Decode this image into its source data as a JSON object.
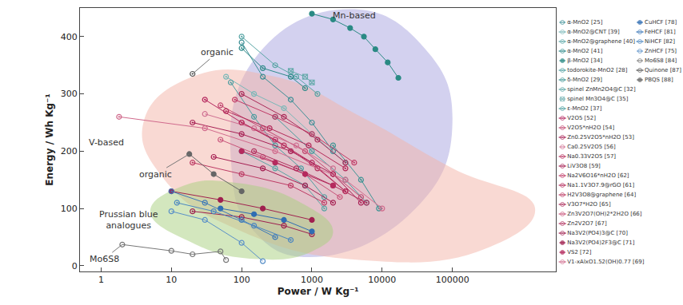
{
  "chart_data": {
    "type": "scatter",
    "x_label": "Power / W Kg⁻¹",
    "y_label": "Energy / Wh Kg⁻¹",
    "log": "x",
    "xlim": [
      0.5,
      3000000
    ],
    "ylim": [
      -10,
      450
    ],
    "xticks": [
      1,
      10,
      100,
      1000,
      10000,
      100000
    ],
    "yticks": [
      0,
      100,
      200,
      300,
      400
    ],
    "grid": false,
    "legend": "right",
    "series": [
      {
        "name": "α-MnO2 [25]",
        "color": "#3c8f96",
        "marker": "open",
        "x": [
          100,
          200,
          500,
          1000,
          2000
        ],
        "values": [
          390,
          330,
          290,
          250,
          200
        ]
      },
      {
        "name": "α-MnO2@CNT [39]",
        "color": "#7ab8b8",
        "marker": "half",
        "x": [
          60,
          150,
          400,
          1000,
          3000
        ],
        "values": [
          330,
          300,
          275,
          230,
          180
        ]
      },
      {
        "name": "α-MnO2@graphene [40]",
        "color": "#5aa6a6",
        "marker": "half",
        "x": [
          100,
          300,
          600,
          1200
        ],
        "values": [
          400,
          350,
          330,
          300
        ]
      },
      {
        "name": "α-MnO2 [41]",
        "color": "#2f8a8a",
        "marker": "half",
        "x": [
          100,
          200,
          500,
          800
        ],
        "values": [
          380,
          345,
          330,
          310
        ]
      },
      {
        "name": "β-MnO2 [34]",
        "color": "#2a8a84",
        "marker": "filled",
        "x": [
          1000,
          2000,
          3500,
          5500,
          8000,
          12000,
          17000
        ],
        "values": [
          440,
          430,
          415,
          400,
          378,
          355,
          328
        ]
      },
      {
        "name": "todorokite-MnO2 [28]",
        "color": "#4d9da0",
        "marker": "half",
        "x": [
          70,
          150,
          300,
          700,
          1500
        ],
        "values": [
          320,
          260,
          210,
          170,
          120
        ]
      },
      {
        "name": "δ-MnO2 [29]",
        "color": "#3d9494",
        "marker": "half",
        "x": [
          2000,
          5000,
          9000
        ],
        "values": [
          210,
          150,
          100
        ]
      },
      {
        "name": "spinel ZnMn2O4@C [32]",
        "color": "#5aa5a5",
        "marker": "half",
        "x": [
          100,
          300,
          800,
          1500
        ],
        "values": [
          200,
          170,
          140,
          100
        ]
      },
      {
        "name": "spinel Mn3O4@C [35]",
        "color": "#6aacae",
        "marker": "crossed",
        "x": [
          500,
          800,
          1000
        ],
        "values": [
          340,
          330,
          320
        ]
      },
      {
        "name": "ε-MnO2 [37]",
        "color": "#4a9ea0",
        "marker": "half",
        "x": [
          300,
          1000,
          3000,
          6000
        ],
        "values": [
          260,
          200,
          150,
          110
        ]
      },
      {
        "name": "V2O5 [52]",
        "color": "#b4245c",
        "marker": "half",
        "x": [
          30,
          100,
          300,
          1000,
          3000
        ],
        "values": [
          290,
          250,
          220,
          180,
          130
        ]
      },
      {
        "name": "V2O5*nH2O [54]",
        "color": "#c2466f",
        "marker": "half",
        "x": [
          50,
          200,
          800,
          2000,
          5000
        ],
        "values": [
          280,
          240,
          200,
          160,
          120
        ]
      },
      {
        "name": "Zn0.25V2O5*nH2O [53]",
        "color": "#a82155",
        "marker": "half",
        "x": [
          20,
          100,
          500,
          2000,
          5000
        ],
        "values": [
          250,
          230,
          200,
          160,
          110
        ]
      },
      {
        "name": "Ca0.25V2O5 [56]",
        "color": "#d07092",
        "marker": "open",
        "x": [
          30,
          150,
          600,
          2000
        ],
        "values": [
          265,
          240,
          210,
          170
        ]
      },
      {
        "name": "Na0.33V2O5 [57]",
        "color": "#b8305e",
        "marker": "half",
        "x": [
          100,
          400,
          1200,
          3000
        ],
        "values": [
          250,
          210,
          170,
          130
        ]
      },
      {
        "name": "LiV3O8 [59]",
        "color": "#a51f52",
        "marker": "half",
        "x": [
          40,
          200,
          800,
          2000
        ],
        "values": [
          190,
          170,
          140,
          110
        ]
      },
      {
        "name": "Na2V6O16*nH2O [62]",
        "color": "#c03a66",
        "marker": "half",
        "x": [
          80,
          300,
          1000,
          4000
        ],
        "values": [
          290,
          260,
          230,
          180
        ]
      },
      {
        "name": "Na1.1V3O7.9@rGO [61]",
        "color": "#b32a5a",
        "marker": "half",
        "x": [
          60,
          250,
          900,
          3000
        ],
        "values": [
          270,
          240,
          210,
          170
        ]
      },
      {
        "name": "H2V3O8@graphene [64]",
        "color": "#bc3a64",
        "marker": "half",
        "x": [
          20,
          100,
          500,
          1500
        ],
        "values": [
          180,
          160,
          140,
          110
        ]
      },
      {
        "name": "V3O7*H2O [65]",
        "color": "#a92a58",
        "marker": "half",
        "x": [
          100,
          400,
          1200,
          3000
        ],
        "values": [
          300,
          260,
          220,
          180
        ]
      },
      {
        "name": "Zn3V2O7(OH)2*2H2O [66]",
        "color": "#c9547a",
        "marker": "half",
        "x": [
          50,
          200,
          800,
          2500
        ],
        "values": [
          220,
          190,
          160,
          120
        ]
      },
      {
        "name": "Zn2V2O7 [67]",
        "color": "#b0305e",
        "marker": "half",
        "x": [
          150,
          600,
          2000,
          6000
        ],
        "values": [
          200,
          170,
          140,
          110
        ]
      },
      {
        "name": "Na3V2(PO4)3@C [70]",
        "color": "#9e1e4e",
        "marker": "half",
        "x": [
          20,
          100,
          400,
          1000
        ],
        "values": [
          95,
          85,
          70,
          55
        ]
      },
      {
        "name": "Na3V2(PO4)2F3@C [71]",
        "color": "#a0204f",
        "marker": "filled",
        "x": [
          10,
          50,
          200,
          1000
        ],
        "values": [
          130,
          115,
          100,
          80
        ]
      },
      {
        "name": "VS2 [72]",
        "color": "#b52a5e",
        "marker": "filled",
        "x": [
          100,
          300,
          800,
          2000
        ],
        "values": [
          200,
          180,
          160,
          140
        ]
      },
      {
        "name": "V1-xAlxO1.52(OH)0.77 [69]",
        "color": "#d06a8c",
        "marker": "half",
        "x": [
          1.8,
          30,
          300,
          3000,
          10000
        ],
        "values": [
          260,
          240,
          200,
          150,
          100
        ]
      },
      {
        "name": "CuHCF [78]",
        "color": "#2f6db3",
        "marker": "filled",
        "x": [
          50,
          150,
          400,
          1000
        ],
        "values": [
          100,
          90,
          80,
          60
        ]
      },
      {
        "name": "FeHCF [81]",
        "color": "#3c78b8",
        "marker": "half",
        "x": [
          10,
          30,
          100,
          300
        ],
        "values": [
          130,
          110,
          80,
          50
        ]
      },
      {
        "name": "NiHCF [82]",
        "color": "#4a86c0",
        "marker": "half",
        "x": [
          12,
          40,
          150,
          500
        ],
        "values": [
          110,
          95,
          70,
          45
        ]
      },
      {
        "name": "ZnHCF [75]",
        "color": "#5a90c8",
        "marker": "open",
        "x": [
          10,
          30,
          100,
          200
        ],
        "values": [
          95,
          80,
          40,
          8
        ]
      },
      {
        "name": "Mo6S8 [84]",
        "color": "#777777",
        "marker": "open",
        "x": [
          2,
          10,
          20,
          50,
          60
        ],
        "values": [
          37,
          26,
          20,
          25,
          10
        ]
      },
      {
        "name": "Quinone [87]",
        "color": "#555555",
        "marker": "half",
        "x": [
          20
        ],
        "values": [
          335
        ]
      },
      {
        "name": "PBQS [88]",
        "color": "#666666",
        "marker": "filled",
        "x": [
          18,
          40,
          100
        ],
        "values": [
          195,
          160,
          130
        ]
      }
    ],
    "regions": [
      {
        "color": "#a7a3e0",
        "x": [
          73,
          150,
          3500,
          40000,
          100000,
          30000,
          900,
          150
        ],
        "values": [
          160,
          360,
          448,
          380,
          250,
          100,
          15,
          60
        ]
      },
      {
        "color": "#f4b3a8",
        "x": [
          4,
          20,
          300,
          5000,
          100000,
          1500000,
          300000,
          5000,
          100,
          8
        ],
        "values": [
          250,
          330,
          330,
          260,
          170,
          100,
          30,
          10,
          60,
          150
        ]
      },
      {
        "color": "#a8cf7e",
        "x": [
          5,
          15,
          80,
          700,
          2000,
          1000,
          150,
          20
        ],
        "values": [
          95,
          140,
          145,
          110,
          60,
          25,
          12,
          40
        ]
      }
    ],
    "annotations": [
      {
        "text": "Mn-based",
        "x": 4000,
        "y": 437
      },
      {
        "text": "V-based",
        "x": 1.2,
        "y": 215
      },
      {
        "text": "organic",
        "x": 45,
        "y": 372,
        "points_to": [
          20,
          335
        ]
      },
      {
        "text": "organic",
        "x": 6,
        "y": 160,
        "points_to": [
          18,
          195
        ]
      },
      {
        "text": [
          "Prussian blue",
          "analogues"
        ],
        "x": 2.5,
        "y": 80
      },
      {
        "text": "Mo6S8",
        "x": 1.1,
        "y": 12,
        "points_to": [
          2,
          37
        ]
      }
    ]
  }
}
